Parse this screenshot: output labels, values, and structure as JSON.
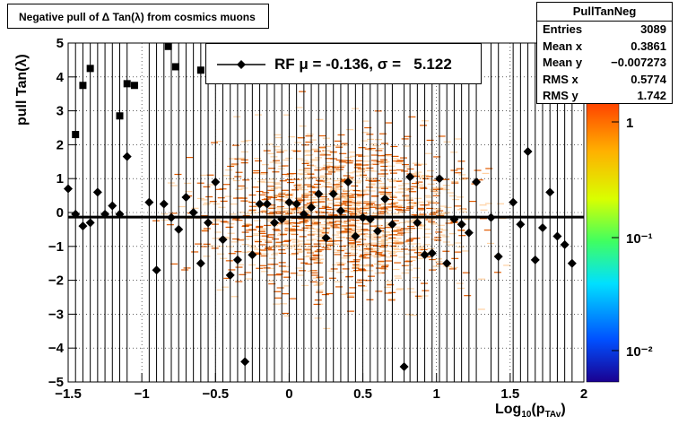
{
  "title": "Negative pull of Δ Tan(λ) from cosmics muons",
  "stats": {
    "name": "PullTanNeg",
    "rows": [
      {
        "label": "Entries",
        "value": "3089"
      },
      {
        "label": "Mean x",
        "value": "0.3861"
      },
      {
        "label": "Mean y",
        "value": "−0.007273"
      },
      {
        "label": "RMS x",
        "value": "0.5774"
      },
      {
        "label": "RMS y",
        "value": "1.742"
      }
    ]
  },
  "legend": {
    "text": "RF μ = -0.136, σ =   5.122"
  },
  "chart_data": {
    "type": "scatter",
    "title": "Negative pull of Δ Tan(λ) from cosmics muons",
    "xlabel": "Log10(pTAv)",
    "ylabel": "pull Tan(λ)",
    "xlim": [
      -1.5,
      2
    ],
    "ylim": [
      -5,
      5
    ],
    "x_ticks": [
      -1.5,
      -1,
      -0.5,
      0,
      0.5,
      1,
      1.5,
      2
    ],
    "x_tick_labels": [
      "−1.5",
      "−1",
      "−0.5",
      "0",
      "0.5",
      "1",
      "1.5",
      "2"
    ],
    "y_ticks": [
      -5,
      -4,
      -3,
      -2,
      -1,
      0,
      1,
      2,
      3,
      4,
      5
    ],
    "y_tick_labels": [
      "−5",
      "−4",
      "−3",
      "−2",
      "−1",
      "0",
      "1",
      "2",
      "3",
      "4",
      "5"
    ],
    "grid": true,
    "colz_ticks": [
      "1",
      "10⁻¹",
      "10⁻²"
    ],
    "colors": {
      "fit_line": "#000000",
      "markers": "#000000",
      "density_low": "#ffd0a0",
      "density_high": "#e05a00"
    },
    "fit": {
      "mean": -0.136,
      "sigma": 5.122
    },
    "squares": [
      {
        "x": -1.45,
        "y": 2.3
      },
      {
        "x": -1.4,
        "y": 3.75
      },
      {
        "x": -1.35,
        "y": 4.25
      },
      {
        "x": -1.15,
        "y": 2.85
      },
      {
        "x": -1.1,
        "y": 3.8
      },
      {
        "x": -1.05,
        "y": 3.75
      },
      {
        "x": -0.82,
        "y": 4.9
      },
      {
        "x": -0.77,
        "y": 4.3
      },
      {
        "x": -0.6,
        "y": 4.2
      }
    ],
    "points": [
      {
        "x": -1.5,
        "y": 0.7
      },
      {
        "x": -1.45,
        "y": -0.05
      },
      {
        "x": -1.4,
        "y": -0.4
      },
      {
        "x": -1.35,
        "y": -0.3
      },
      {
        "x": -1.3,
        "y": 0.6
      },
      {
        "x": -1.25,
        "y": -0.05
      },
      {
        "x": -1.2,
        "y": 0.2
      },
      {
        "x": -1.15,
        "y": -0.05
      },
      {
        "x": -1.1,
        "y": 1.65
      },
      {
        "x": -0.95,
        "y": 0.3
      },
      {
        "x": -0.9,
        "y": -1.7
      },
      {
        "x": -0.85,
        "y": 0.25
      },
      {
        "x": -0.8,
        "y": -0.15
      },
      {
        "x": -0.75,
        "y": -0.5
      },
      {
        "x": -0.7,
        "y": 0.45
      },
      {
        "x": -0.65,
        "y": 0.0
      },
      {
        "x": -0.6,
        "y": -1.5
      },
      {
        "x": -0.55,
        "y": -0.3
      },
      {
        "x": -0.5,
        "y": 0.9
      },
      {
        "x": -0.45,
        "y": -0.8
      },
      {
        "x": -0.4,
        "y": -1.85
      },
      {
        "x": -0.35,
        "y": -1.4
      },
      {
        "x": -0.3,
        "y": -4.4
      },
      {
        "x": -0.25,
        "y": -1.25
      },
      {
        "x": -0.2,
        "y": 0.25
      },
      {
        "x": -0.15,
        "y": 0.25
      },
      {
        "x": -0.1,
        "y": -0.3
      },
      {
        "x": -0.05,
        "y": -0.2
      },
      {
        "x": 0.0,
        "y": 0.3
      },
      {
        "x": 0.05,
        "y": 0.25
      },
      {
        "x": 0.1,
        "y": -0.05
      },
      {
        "x": 0.15,
        "y": 0.15
      },
      {
        "x": 0.2,
        "y": 0.55
      },
      {
        "x": 0.25,
        "y": -0.75
      },
      {
        "x": 0.3,
        "y": 0.55
      },
      {
        "x": 0.35,
        "y": 0.05
      },
      {
        "x": 0.4,
        "y": 0.9
      },
      {
        "x": 0.45,
        "y": -0.7
      },
      {
        "x": 0.5,
        "y": -0.15
      },
      {
        "x": 0.55,
        "y": -0.2
      },
      {
        "x": 0.6,
        "y": -0.55
      },
      {
        "x": 0.65,
        "y": 0.4
      },
      {
        "x": 0.7,
        "y": -0.35
      },
      {
        "x": 0.78,
        "y": -4.55
      },
      {
        "x": 0.82,
        "y": 1.05
      },
      {
        "x": 0.87,
        "y": -0.3
      },
      {
        "x": 0.92,
        "y": -1.25
      },
      {
        "x": 0.97,
        "y": -1.2
      },
      {
        "x": 1.02,
        "y": 1.0
      },
      {
        "x": 1.07,
        "y": -1.5
      },
      {
        "x": 1.12,
        "y": -0.2
      },
      {
        "x": 1.17,
        "y": -0.35
      },
      {
        "x": 1.22,
        "y": -0.6
      },
      {
        "x": 1.27,
        "y": 0.9
      },
      {
        "x": 1.37,
        "y": -0.15
      },
      {
        "x": 1.42,
        "y": -1.3
      },
      {
        "x": 1.52,
        "y": 0.3
      },
      {
        "x": 1.57,
        "y": -0.35
      },
      {
        "x": 1.62,
        "y": 1.8
      },
      {
        "x": 1.67,
        "y": -1.4
      },
      {
        "x": 1.72,
        "y": -0.45
      },
      {
        "x": 1.77,
        "y": 0.6
      },
      {
        "x": 1.82,
        "y": -0.7
      },
      {
        "x": 1.87,
        "y": -0.95
      },
      {
        "x": 1.92,
        "y": -1.5
      }
    ]
  }
}
